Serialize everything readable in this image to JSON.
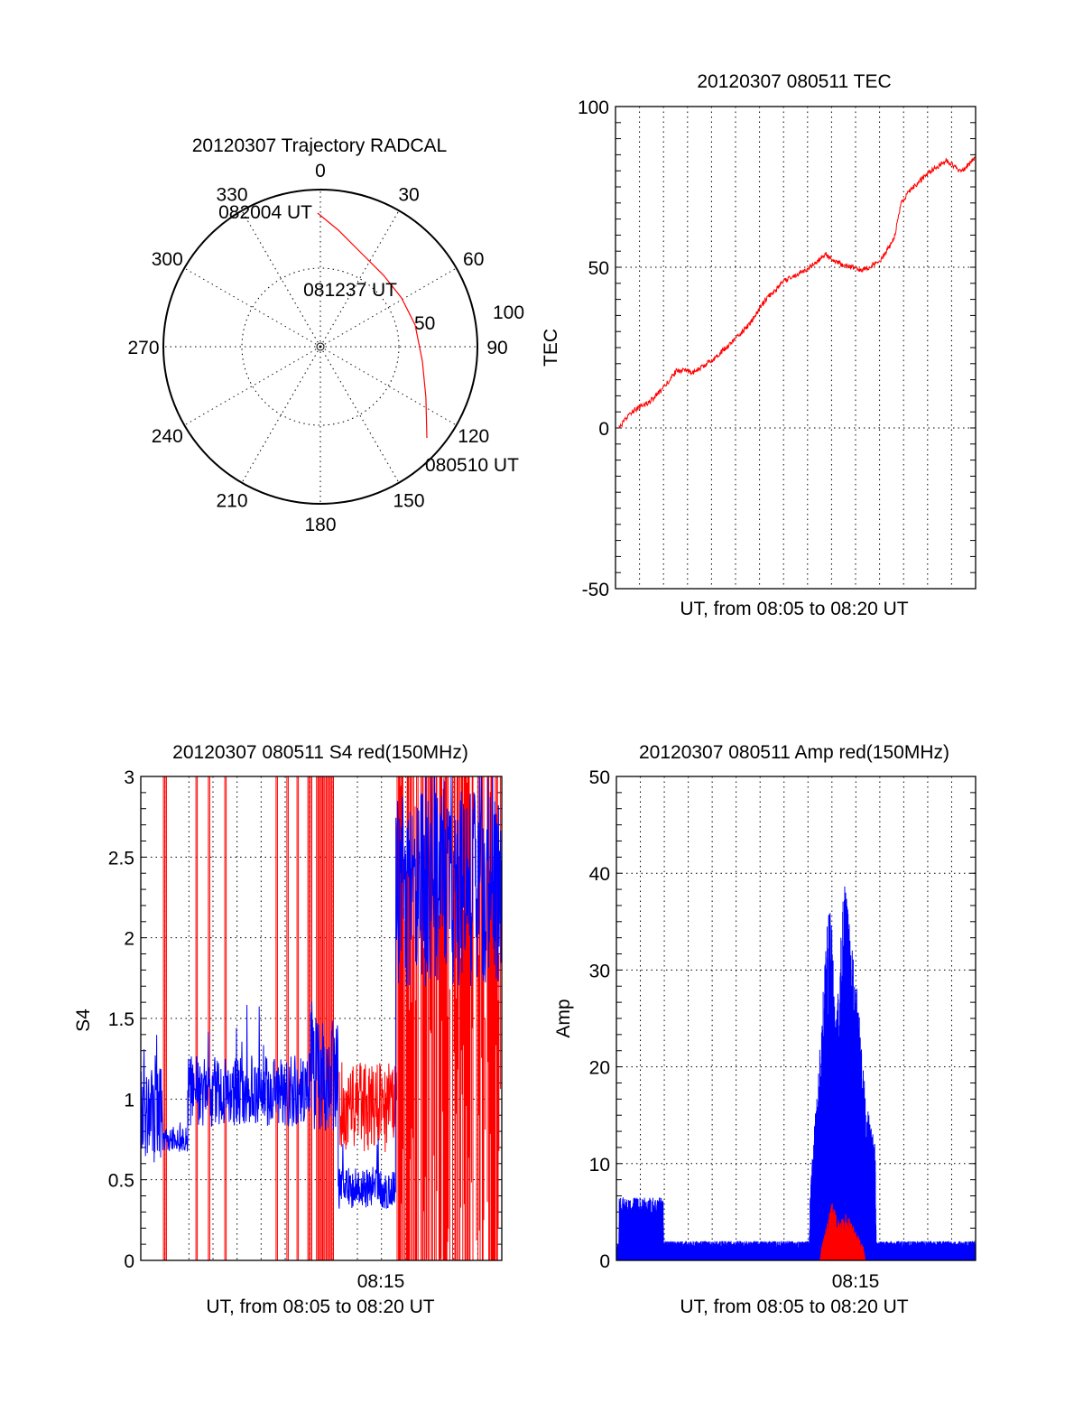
{
  "chart_data": [
    {
      "type": "polar",
      "title": "20120307 Trajectory RADCAL",
      "angle_ticks": [
        "0",
        "30",
        "60",
        "90",
        "120",
        "150",
        "180",
        "210",
        "240",
        "270",
        "300",
        "330"
      ],
      "radial_ticks": [
        "50",
        "100"
      ],
      "rlim": [
        0,
        100
      ],
      "trajectory": {
        "color": "#ff0000",
        "az": [
          130.6,
          115.6,
          98.1,
          77.1,
          59,
          41.5,
          23.4,
          8.8,
          358.8
        ],
        "r": [
          89.3,
          74.5,
          65.6,
          61.9,
          60.3,
          60.7,
          65.1,
          75,
          85.1
        ]
      },
      "annotations": [
        {
          "text": "080510 UT",
          "az": 130.6,
          "r": 89.3
        },
        {
          "text": "081237 UT",
          "az": 59,
          "r": 60.3
        },
        {
          "text": "082004 UT",
          "az": 358.8,
          "r": 85.1
        }
      ]
    },
    {
      "type": "line",
      "title": "20120307 080511 TEC",
      "xlabel": "UT, from 08:05 to 08:20 UT",
      "ylabel": "TEC",
      "x_units": "minutes after 08:05",
      "xlim": [
        0,
        15
      ],
      "ylim": [
        -50,
        100
      ],
      "yticks": [
        "100",
        "50",
        "0",
        "-50"
      ],
      "grid": true,
      "series": [
        {
          "name": "TEC",
          "color": "#ff0000",
          "x": [
            0.15,
            0.7,
            1.43,
            2.0,
            2.56,
            3.3,
            4.06,
            4.8,
            5.56,
            6.3,
            7.07,
            8.0,
            8.76,
            9.1,
            10.26,
            11.0,
            11.6,
            11.9,
            12.3,
            13.1,
            13.8,
            14.4,
            15
          ],
          "y": [
            0,
            5.3,
            8.2,
            12.4,
            18,
            17.4,
            21.3,
            26.4,
            32,
            40.4,
            46,
            49.4,
            54,
            51.7,
            48.9,
            51.7,
            58.7,
            70,
            74.2,
            79.8,
            83.1,
            79.8,
            84
          ]
        }
      ]
    },
    {
      "type": "line",
      "title": "20120307 080511 S4 red(150MHz)",
      "xlabel": "UT, from 08:05 to 08:20 UT",
      "ylabel": "S4",
      "xtick_label": "08:15",
      "xlim": [
        0,
        15
      ],
      "ylim": [
        0,
        3
      ],
      "yticks": [
        "0",
        "0.5",
        "1",
        "1.5",
        "2",
        "2.5",
        "3"
      ],
      "grid": true,
      "series": [
        {
          "name": "S4 blue",
          "color": "#0000ff",
          "segments": [
            {
              "t": [
                0,
                0.9
              ],
              "level": 0.9,
              "spread": 0.3
            },
            {
              "t": [
                0.9,
                1.95
              ],
              "level": 0.75,
              "spread": 0.08
            },
            {
              "t": [
                1.95,
                7
              ],
              "level": 1.05,
              "spread": 0.22
            },
            {
              "t": [
                7,
                8.2
              ],
              "level": 1.15,
              "spread": 0.35
            },
            {
              "t": [
                8.2,
                10.6
              ],
              "level": 0.45,
              "spread": 0.13
            },
            {
              "t": [
                10.6,
                15
              ],
              "level": 2.3,
              "spread": 0.6
            }
          ]
        },
        {
          "name": "S4 red",
          "color": "#ff0000",
          "spikes_t": [
            0.94,
            1.01,
            2.29,
            2.81,
            3.49,
            5.62,
            6.07,
            6.49,
            6.94,
            7.05,
            7.3,
            7.4,
            7.5,
            7.55,
            7.65,
            7.72,
            7.8,
            7.88,
            7.95
          ],
          "segments": [
            {
              "t": [
                8.25,
                10.65
              ],
              "level": 0.95,
              "spread": 0.28
            }
          ],
          "dense_spike_range": [
            10.65,
            15
          ]
        }
      ]
    },
    {
      "type": "line",
      "title": "20120307 080511 Amp red(150MHz)",
      "xlabel": "UT, from 08:05 to 08:20 UT",
      "ylabel": "Amp",
      "xtick_label": "08:15",
      "xlim": [
        0,
        15
      ],
      "ylim": [
        0,
        50
      ],
      "yticks": [
        "0",
        "10",
        "20",
        "30",
        "40",
        "50"
      ],
      "grid": true,
      "series": [
        {
          "name": "Amp blue",
          "color": "#0000ff",
          "envelope_t": [
            0,
            0.1,
            0.12,
            1.95,
            1.97,
            8.05,
            8.1,
            8.5,
            8.9,
            9.2,
            9.5,
            9.8,
            10.1,
            10.4,
            10.8,
            10.85,
            15
          ],
          "envelope_max": [
            1.5,
            2,
            6.5,
            6.5,
            2,
            2,
            8,
            22,
            39,
            25,
            40,
            33,
            27,
            17,
            12,
            2,
            2
          ]
        },
        {
          "name": "Amp red",
          "color": "#ff0000",
          "envelope_t": [
            8.5,
            8.6,
            9.0,
            9.3,
            9.6,
            10.0,
            10.3,
            10.4
          ],
          "envelope_max": [
            0,
            2,
            6,
            4,
            5,
            3,
            1.5,
            0
          ]
        }
      ]
    }
  ]
}
